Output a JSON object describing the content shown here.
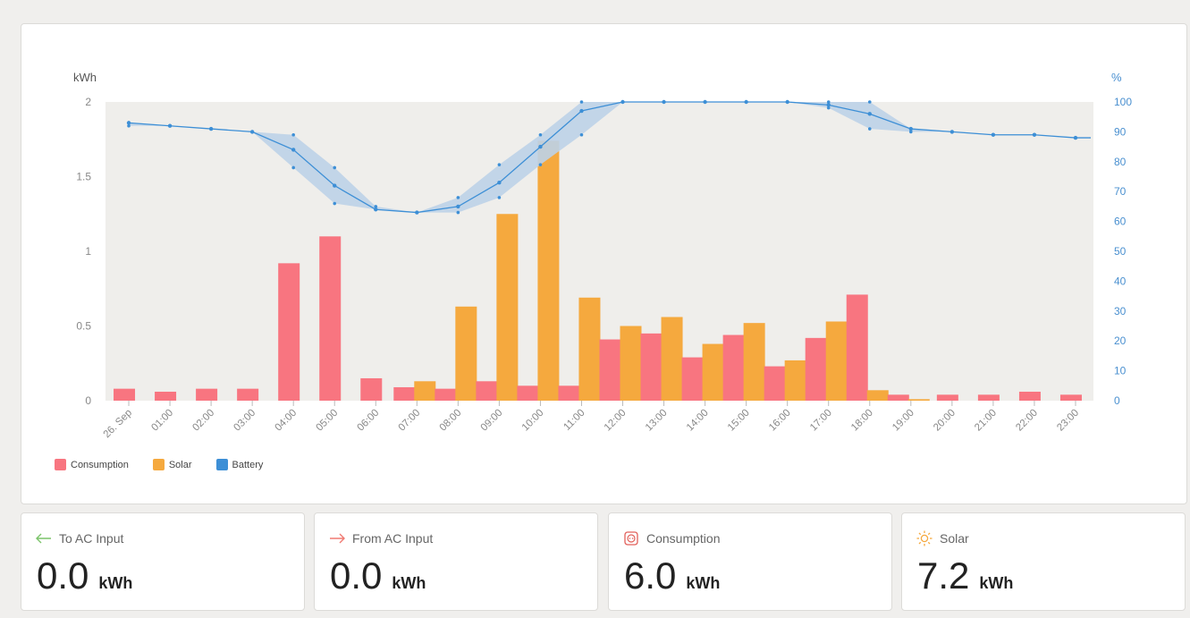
{
  "colors": {
    "consumption": "#f87580",
    "solar": "#f5a93e",
    "battery": "#3d8fd6",
    "battery_band": "#bcd2e8",
    "plot_bg": "#efeeeb",
    "axis_text": "#888888",
    "right_axis_text": "#4a90d0"
  },
  "chart_data": {
    "type": "bar",
    "ylabel_left": "kWh",
    "ylabel_right": "%",
    "ylim_left": [
      0,
      2
    ],
    "ylim_right": [
      0,
      100
    ],
    "yticks_left": [
      "0",
      "0.5",
      "1",
      "1.5",
      "2"
    ],
    "yticks_right": [
      "0",
      "10",
      "20",
      "30",
      "40",
      "50",
      "60",
      "70",
      "80",
      "90",
      "100"
    ],
    "categories": [
      "26. Sep",
      "01:00",
      "02:00",
      "03:00",
      "04:00",
      "05:00",
      "06:00",
      "07:00",
      "08:00",
      "09:00",
      "10:00",
      "11:00",
      "12:00",
      "13:00",
      "14:00",
      "15:00",
      "16:00",
      "17:00",
      "18:00",
      "19:00",
      "20:00",
      "21:00",
      "22:00",
      "23:00"
    ],
    "series": [
      {
        "name": "Consumption",
        "type": "bar",
        "values": [
          0.08,
          0.06,
          0.08,
          0.08,
          0.92,
          1.1,
          0.15,
          0.09,
          0.08,
          0.13,
          0.1,
          0.1,
          0.41,
          0.45,
          0.29,
          0.44,
          0.23,
          0.42,
          0.71,
          0.04,
          0.04,
          0.04,
          0.06,
          0.04
        ]
      },
      {
        "name": "Solar",
        "type": "bar",
        "values": [
          0,
          0,
          0,
          0,
          0,
          0,
          0,
          0.13,
          0.63,
          1.25,
          1.74,
          0.69,
          0.5,
          0.56,
          0.38,
          0.52,
          0.27,
          0.53,
          0.07,
          0.01,
          0,
          0,
          0,
          0
        ]
      },
      {
        "name": "Battery",
        "type": "line",
        "axis": "right",
        "x": [
          "26. Sep",
          "01:00",
          "02:00",
          "03:00",
          "04:00",
          "05:00",
          "06:00",
          "07:00",
          "08:00",
          "09:00",
          "10:00",
          "11:00",
          "12:00",
          "13:00",
          "14:00",
          "15:00",
          "16:00",
          "17:00",
          "18:00",
          "19:00",
          "20:00",
          "21:00",
          "22:00",
          "23:00",
          "23:59"
        ],
        "values": [
          93,
          92,
          91,
          90,
          84,
          72,
          64,
          63,
          65,
          73,
          85,
          97,
          100,
          100,
          100,
          100,
          100,
          99,
          96,
          91,
          90,
          89,
          89,
          88,
          88
        ],
        "min": [
          92,
          92,
          91,
          90,
          78,
          66,
          64,
          63,
          63,
          68,
          79,
          89,
          100,
          100,
          100,
          100,
          100,
          98,
          91,
          90,
          90,
          89,
          89,
          88,
          88
        ],
        "max": [
          93,
          92,
          91,
          90,
          89,
          78,
          65,
          63,
          68,
          79,
          89,
          100,
          100,
          100,
          100,
          100,
          100,
          100,
          100,
          91,
          90,
          89,
          89,
          88,
          88
        ]
      }
    ],
    "legend": [
      "Consumption",
      "Solar",
      "Battery"
    ],
    "legend_position": "bottom-left",
    "grid": false
  },
  "stats": [
    {
      "label": "To AC Input",
      "icon": "arrow-left-icon",
      "value": "0.0",
      "unit": "kWh"
    },
    {
      "label": "From AC Input",
      "icon": "arrow-right-icon",
      "value": "0.0",
      "unit": "kWh"
    },
    {
      "label": "Consumption",
      "icon": "outlet-icon",
      "value": "6.0",
      "unit": "kWh"
    },
    {
      "label": "Solar",
      "icon": "sun-icon",
      "value": "7.2",
      "unit": "kWh"
    }
  ]
}
